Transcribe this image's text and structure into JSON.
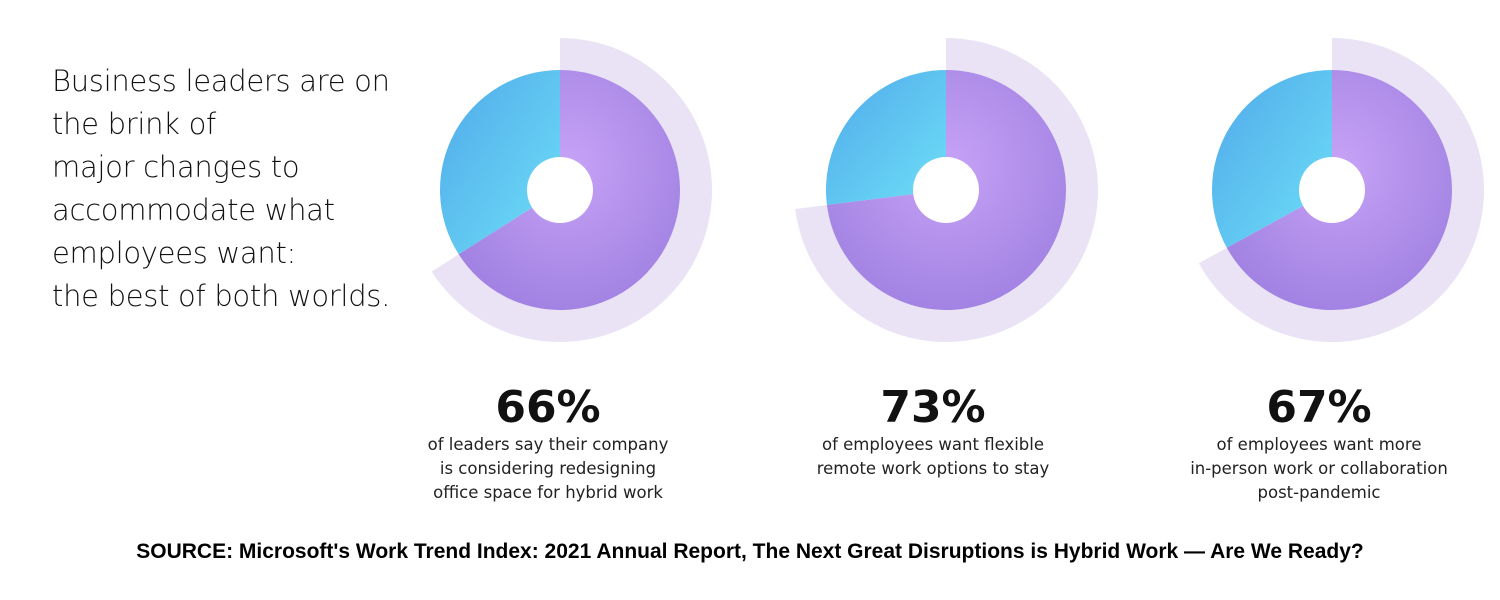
{
  "intro": {
    "lines": [
      "Business leaders are on",
      "the brink of",
      "major changes to",
      "accommodate what",
      "employees want:",
      "the best of both worlds."
    ]
  },
  "colors": {
    "purple": "#a98ae6",
    "blue": "#55c8f1",
    "halo": "#e9e3f5",
    "hole": "#ffffff"
  },
  "chart_data": {
    "type": "pie",
    "title": "",
    "charts": [
      {
        "value": 66,
        "label": "66%",
        "description": [
          "of leaders say their company",
          "is considering redesigning",
          "office space for hybrid work"
        ]
      },
      {
        "value": 73,
        "label": "73%",
        "description": [
          "of employees want flexible",
          "remote work options to stay"
        ]
      },
      {
        "value": 67,
        "label": "67%",
        "description": [
          "of employees want more",
          "in-person work or collaboration",
          "post-pandemic"
        ]
      }
    ]
  },
  "source": "SOURCE: Microsoft's Work Trend Index: 2021 Annual Report, The Next Great Disruptions is Hybrid Work — Are We Ready?"
}
